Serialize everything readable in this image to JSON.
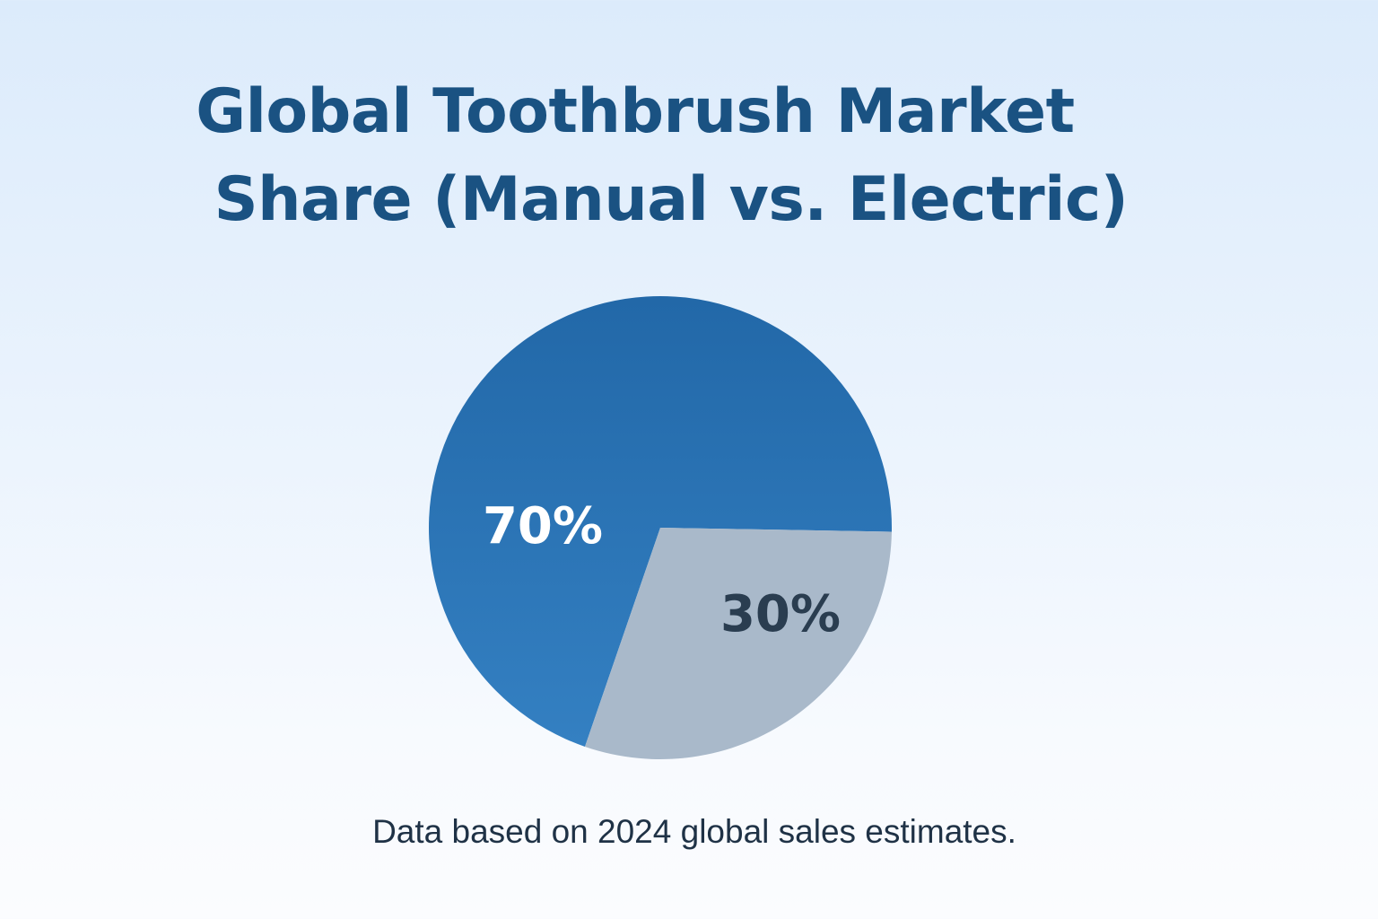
{
  "title_lines": [
    "Global Toothbrush Market",
    "Share (Manual vs. Electric)"
  ],
  "footnote": "Data based on 2024 global sales estimates.",
  "chart_data": {
    "type": "pie",
    "title": "Global Toothbrush Market Share (Manual vs. Electric)",
    "slices": [
      {
        "label": "70%",
        "value": 70,
        "color": "#2a70b5",
        "label_color": "#ffffff"
      },
      {
        "label": "30%",
        "value": 30,
        "color": "#a9b9ca",
        "label_color": "#2a3d50"
      }
    ],
    "legend": "none",
    "colors": {
      "title": "#1a5282",
      "footnote": "#1f3246"
    }
  }
}
